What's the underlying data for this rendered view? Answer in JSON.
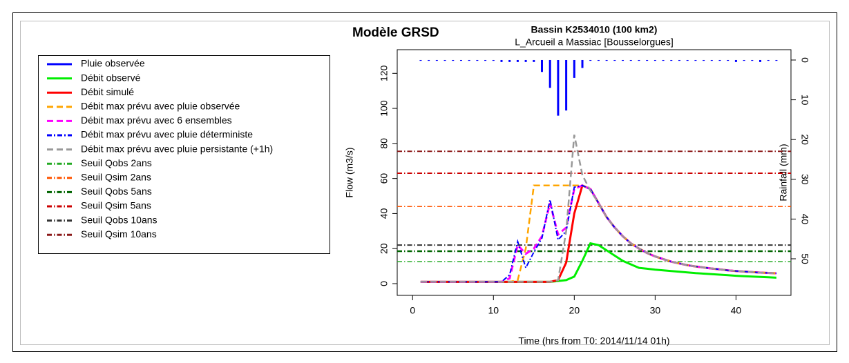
{
  "chart_data": {
    "type": "line",
    "heading": "Modèle GRSD",
    "title": "Bassin K2534010 (100 km2)",
    "subtitle": "L_Arcueil a Massiac [Bousselorgues]",
    "xlabel": "Time (hrs from T0: 2014/11/14 01h)",
    "ylabel": "Flow (m3/s)",
    "y2label": "Rainfall (mm)",
    "xlim": [
      -1.9,
      46.8
    ],
    "ylim": [
      -6.7,
      133.5
    ],
    "y2lim": [
      59.2,
      -2.6
    ],
    "xticks": [
      0,
      10,
      20,
      30,
      40
    ],
    "yticks": [
      0,
      20,
      40,
      60,
      80,
      100,
      120
    ],
    "y2ticks": [
      0,
      10,
      20,
      30,
      40,
      50
    ],
    "legend": "top-left",
    "x": [
      1,
      2,
      3,
      4,
      5,
      6,
      7,
      8,
      9,
      10,
      11,
      12,
      13,
      14,
      15,
      16,
      17,
      18,
      19,
      20,
      21,
      22,
      23,
      24,
      25,
      26,
      27,
      28,
      29,
      30,
      31,
      32,
      33,
      34,
      35,
      36,
      37,
      38,
      39,
      40,
      41,
      42,
      43,
      44,
      45
    ],
    "series": [
      {
        "name": "Pluie observée",
        "color": "#0000ff",
        "axis": "y2",
        "style": "bars",
        "linewidth": 3,
        "values": [
          0.2,
          0.2,
          0.2,
          0.2,
          0.2,
          0.2,
          0.2,
          0.2,
          0.2,
          0.2,
          0.5,
          0.5,
          0.5,
          0.5,
          0.5,
          3,
          7,
          14,
          12.7,
          4.5,
          2,
          0.2,
          0.2,
          0.2,
          0.2,
          0.2,
          0.2,
          0.2,
          0.2,
          0.2,
          0.2,
          0.2,
          0.2,
          0.2,
          0.2,
          0.2,
          0.2,
          0.2,
          0.2,
          0.5,
          0.2,
          0.2,
          0.5,
          0.2,
          0.2
        ]
      },
      {
        "name": "Débit observé",
        "color": "#00ee00",
        "style": "solid",
        "linewidth": 3,
        "values": [
          1,
          1,
          1,
          1,
          1,
          1,
          1,
          1,
          1,
          1,
          1,
          1,
          1,
          1,
          1,
          1,
          1,
          1.5,
          2,
          4,
          13,
          23,
          22,
          19,
          16,
          13,
          11,
          9,
          8.5,
          8,
          7.6,
          7.2,
          6.8,
          6.4,
          6,
          5.7,
          5.4,
          5.1,
          4.8,
          4.5,
          4.2,
          4,
          3.8,
          3.6,
          3.4
        ]
      },
      {
        "name": "Débit simulé",
        "color": "#ff0000",
        "style": "solid",
        "linewidth": 3,
        "values": [
          1,
          1,
          1,
          1,
          1,
          1,
          1,
          1,
          1,
          1,
          1,
          1,
          1,
          1,
          1,
          1,
          1,
          2,
          12,
          40,
          56,
          54,
          46,
          38,
          32,
          27,
          23,
          20,
          17.5,
          15.5,
          14,
          12.5,
          11.5,
          10.5,
          9.8,
          9.2,
          8.6,
          8.1,
          7.6,
          7.2,
          6.9,
          6.6,
          6.3,
          6.1,
          5.9
        ]
      },
      {
        "name": "Débit max prévu avec pluie observée",
        "color": "#ffa500",
        "style": "dashed",
        "linewidth": 2.5,
        "values": [
          1,
          1,
          1,
          1,
          1,
          1,
          1,
          1,
          1,
          1,
          1,
          1,
          2,
          20,
          56,
          56,
          56,
          56,
          56,
          56,
          56,
          54,
          46,
          38,
          32,
          27,
          23,
          20,
          17.5,
          15.5,
          14,
          12.5,
          11.5,
          10.5,
          9.8,
          9.2,
          8.6,
          8.1,
          7.6,
          7.2,
          6.9,
          6.6,
          6.3,
          6.1,
          5.9
        ]
      },
      {
        "name": "Débit max prévu avec 6 ensembles",
        "color": "#ff00ff",
        "style": "dashed",
        "linewidth": 3,
        "values": [
          1,
          1,
          1,
          1,
          1,
          1,
          1,
          1,
          1,
          1,
          1,
          3,
          22,
          17,
          20,
          27,
          46,
          28,
          32,
          54,
          56,
          54,
          46,
          38,
          32,
          27,
          23,
          20,
          17.5,
          15.5,
          14,
          12.5,
          11.5,
          10.5,
          9.8,
          9.2,
          8.6,
          8.1,
          7.6,
          7.2,
          6.9,
          6.6,
          6.3,
          6.1,
          5.9
        ]
      },
      {
        "name": "Débit max prévu avec pluie déterministe",
        "color": "#0000ff",
        "style": "dotdash",
        "linewidth": 2,
        "values": [
          1,
          1,
          1,
          1,
          1,
          1,
          1,
          1,
          1,
          1,
          1,
          5,
          24,
          9,
          18,
          26,
          48,
          25,
          30,
          55,
          56,
          54,
          46,
          38,
          32,
          27,
          23,
          20,
          17.5,
          15.5,
          14,
          12.5,
          11.5,
          10.5,
          9.8,
          9.2,
          8.6,
          8.1,
          7.6,
          7.2,
          6.9,
          6.6,
          6.3,
          6.1,
          5.9
        ]
      },
      {
        "name": "Débit max prévu avec pluie persistante (+1h)",
        "color": "#999999",
        "style": "dashed",
        "linewidth": 2.5,
        "values": [
          1,
          1,
          1,
          1,
          1,
          1,
          1,
          1,
          1,
          1,
          1,
          1,
          1,
          1,
          1,
          1,
          1,
          2,
          30,
          85,
          62,
          53,
          46,
          38,
          32,
          27,
          23,
          20,
          17.5,
          15.5,
          14,
          12.5,
          11.5,
          10.5,
          9.8,
          9.2,
          8.6,
          8.1,
          7.6,
          7.2,
          6.9,
          6.6,
          6.3,
          6.1,
          5.9
        ]
      }
    ],
    "thresholds": [
      {
        "name": "Seuil Qobs 2ans",
        "color": "#22aa22",
        "value": 12.5,
        "linewidth": 1.5
      },
      {
        "name": "Seuil Qsim 2ans",
        "color": "#ff5500",
        "value": 44,
        "linewidth": 1.5
      },
      {
        "name": "Seuil Qobs 5ans",
        "color": "#006400",
        "value": 18.5,
        "linewidth": 2.5
      },
      {
        "name": "Seuil Qsim 5ans",
        "color": "#cc0000",
        "value": 63,
        "linewidth": 2
      },
      {
        "name": "Seuil Qobs 10ans",
        "color": "#333333",
        "value": 22,
        "linewidth": 2
      },
      {
        "name": "Seuil Qsim 10ans",
        "color": "#8b1a1a",
        "value": 75.5,
        "linewidth": 2
      }
    ]
  }
}
